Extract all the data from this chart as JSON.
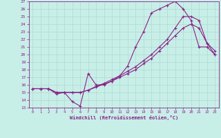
{
  "xlabel": "Windchill (Refroidissement éolien,°C)",
  "bg_color": "#c8eee8",
  "grid_color": "#b0d8d0",
  "line_color": "#882288",
  "xlim": [
    -0.5,
    23.5
  ],
  "ylim": [
    13,
    27
  ],
  "xticks": [
    0,
    1,
    2,
    3,
    4,
    5,
    6,
    7,
    8,
    9,
    10,
    11,
    12,
    13,
    14,
    15,
    16,
    17,
    18,
    19,
    20,
    21,
    22,
    23
  ],
  "yticks": [
    13,
    14,
    15,
    16,
    17,
    18,
    19,
    20,
    21,
    22,
    23,
    24,
    25,
    26,
    27
  ],
  "line1_x": [
    0,
    1,
    2,
    3,
    4,
    5,
    6,
    7,
    8,
    9,
    10,
    11,
    12,
    13,
    14,
    15,
    16,
    17,
    18,
    19,
    20,
    21,
    22,
    23
  ],
  "line1_y": [
    15.5,
    15.5,
    15.5,
    14.8,
    15.0,
    13.8,
    13.2,
    17.5,
    16.0,
    16.0,
    16.5,
    17.2,
    18.5,
    21.0,
    23.0,
    25.5,
    26.0,
    26.5,
    27.0,
    26.0,
    24.5,
    21.0,
    21.0,
    20.0
  ],
  "line2_x": [
    0,
    1,
    2,
    3,
    4,
    5,
    6,
    7,
    8,
    9,
    10,
    11,
    12,
    13,
    14,
    15,
    16,
    17,
    18,
    19,
    20,
    21,
    22,
    23
  ],
  "line2_y": [
    15.5,
    15.5,
    15.5,
    15.0,
    15.0,
    15.0,
    15.0,
    15.3,
    15.7,
    16.1,
    16.5,
    17.0,
    17.5,
    18.0,
    18.8,
    19.5,
    20.5,
    21.5,
    22.5,
    23.5,
    24.0,
    23.5,
    21.5,
    20.0
  ],
  "line3_x": [
    0,
    1,
    2,
    3,
    4,
    5,
    6,
    7,
    8,
    9,
    10,
    11,
    12,
    13,
    14,
    15,
    16,
    17,
    18,
    19,
    20,
    21,
    22,
    23
  ],
  "line3_y": [
    15.5,
    15.5,
    15.5,
    15.0,
    15.0,
    15.0,
    15.0,
    15.3,
    15.8,
    16.2,
    16.7,
    17.2,
    17.8,
    18.4,
    19.2,
    20.0,
    21.0,
    22.0,
    23.5,
    25.0,
    25.0,
    24.5,
    21.5,
    20.5
  ]
}
